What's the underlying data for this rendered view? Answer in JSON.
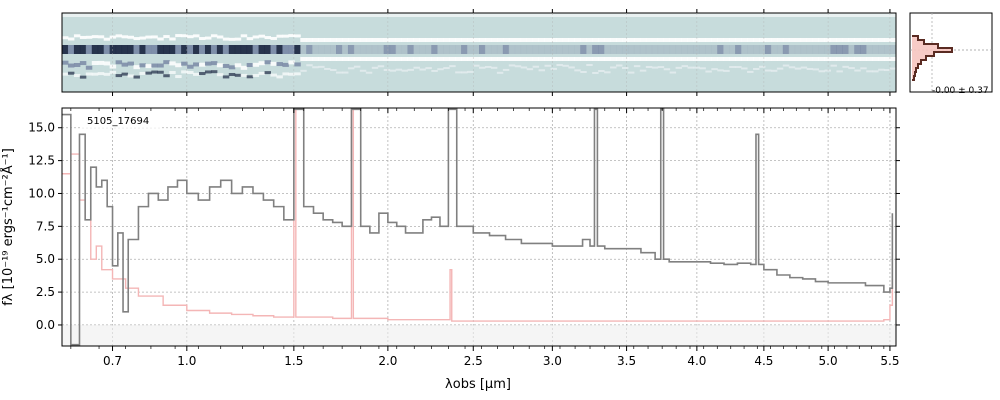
{
  "chart_data": [
    {
      "type": "heatmap",
      "panel": "2d-spectrum",
      "description_colors": {
        "background": "#c7dcdc",
        "dark": "#1f2a44",
        "mid": "#7a8aa6"
      },
      "x_range_um": [
        0.52,
        5.55
      ],
      "y_range": [
        -1,
        1
      ]
    },
    {
      "type": "line",
      "panel": "1d-spectrum",
      "label": "5105_17694",
      "xlabel": "λobs [μm]",
      "ylabel": "fλ [10⁻¹⁹ ergs⁻¹cm⁻²Å⁻¹]",
      "xlim": [
        0.52,
        5.55
      ],
      "ylim": [
        -1.6,
        16.5
      ],
      "xticks": [
        0.7,
        1.0,
        1.5,
        2.0,
        2.5,
        3.0,
        3.5,
        4.0,
        4.5,
        5.0,
        5.5
      ],
      "xtick_labels": [
        "0.7",
        "1.0",
        "1.5",
        "2.0",
        "2.5",
        "3.0",
        "3.5",
        "4.0",
        "4.5",
        "5.0",
        "5.5"
      ],
      "yticks": [
        0.0,
        2.5,
        5.0,
        7.5,
        10.0,
        12.5,
        15.0
      ],
      "ytick_labels": [
        "0.0",
        "2.5",
        "5.0",
        "7.5",
        "10.0",
        "12.5",
        "15.0"
      ],
      "grid": true,
      "series": [
        {
          "role": "flux",
          "color": "#808080",
          "x": [
            0.52,
            0.55,
            0.58,
            0.6,
            0.62,
            0.64,
            0.66,
            0.68,
            0.7,
            0.72,
            0.74,
            0.76,
            0.8,
            0.84,
            0.88,
            0.92,
            0.96,
            1.0,
            1.05,
            1.1,
            1.15,
            1.2,
            1.25,
            1.3,
            1.35,
            1.4,
            1.45,
            1.5,
            1.55,
            1.6,
            1.65,
            1.7,
            1.75,
            1.8,
            1.85,
            1.9,
            1.95,
            2.0,
            2.05,
            2.1,
            2.15,
            2.2,
            2.25,
            2.3,
            2.35,
            2.4,
            2.5,
            2.6,
            2.7,
            2.8,
            2.9,
            3.0,
            3.1,
            3.2,
            3.25,
            3.28,
            3.3,
            3.35,
            3.4,
            3.5,
            3.6,
            3.7,
            3.74,
            3.76,
            3.8,
            3.9,
            4.0,
            4.1,
            4.2,
            4.3,
            4.4,
            4.44,
            4.46,
            4.5,
            4.6,
            4.7,
            4.8,
            4.9,
            5.0,
            5.1,
            5.2,
            5.3,
            5.4,
            5.45,
            5.5,
            5.52
          ],
          "y": [
            16.0,
            -1.5,
            14.5,
            8.0,
            12.0,
            10.5,
            11.0,
            9.0,
            4.5,
            7.0,
            1.0,
            6.5,
            9.0,
            10.0,
            9.5,
            10.5,
            11.0,
            10.0,
            9.5,
            10.5,
            11.0,
            10.0,
            10.5,
            10.0,
            9.5,
            9.0,
            8.0,
            16.4,
            9.0,
            8.5,
            8.0,
            7.8,
            7.5,
            16.4,
            7.5,
            7.0,
            8.5,
            7.8,
            7.5,
            7.0,
            7.0,
            8.0,
            8.2,
            7.5,
            16.4,
            7.5,
            7.0,
            6.8,
            6.5,
            6.2,
            6.2,
            6.0,
            6.0,
            6.5,
            6.0,
            16.4,
            6.0,
            5.8,
            5.8,
            5.8,
            5.5,
            5.0,
            16.4,
            5.0,
            4.8,
            4.8,
            4.8,
            4.7,
            4.6,
            4.7,
            4.6,
            14.5,
            4.6,
            4.2,
            3.8,
            3.6,
            3.5,
            3.3,
            3.2,
            3.2,
            3.2,
            3.0,
            3.0,
            2.5,
            2.8,
            8.5
          ]
        },
        {
          "role": "error",
          "color": "#f4b6b6",
          "x": [
            0.52,
            0.55,
            0.58,
            0.6,
            0.62,
            0.64,
            0.66,
            0.7,
            0.75,
            0.8,
            0.9,
            1.0,
            1.1,
            1.2,
            1.3,
            1.4,
            1.49,
            1.5,
            1.51,
            1.6,
            1.7,
            1.79,
            1.8,
            1.81,
            1.9,
            2.0,
            2.1,
            2.2,
            2.3,
            2.35,
            2.36,
            2.37,
            2.5,
            3.0,
            3.5,
            4.0,
            4.5,
            5.0,
            5.3,
            5.45,
            5.5,
            5.52
          ],
          "y": [
            11.5,
            13.0,
            9.5,
            8.0,
            5.0,
            6.0,
            4.2,
            3.5,
            2.8,
            2.2,
            1.5,
            1.1,
            0.9,
            0.8,
            0.7,
            0.6,
            0.6,
            16.4,
            0.6,
            0.6,
            0.5,
            0.5,
            16.4,
            0.5,
            0.5,
            0.4,
            0.4,
            0.4,
            0.4,
            0.4,
            4.2,
            0.3,
            0.3,
            0.3,
            0.3,
            0.3,
            0.3,
            0.3,
            0.3,
            0.4,
            1.5,
            3.5
          ]
        }
      ]
    },
    {
      "type": "histogram",
      "panel": "residual-histogram",
      "annotation": "-0.00 ± 0.37",
      "colors": {
        "filled": "#f6c5c0",
        "outline": "#5a2b22"
      }
    }
  ]
}
